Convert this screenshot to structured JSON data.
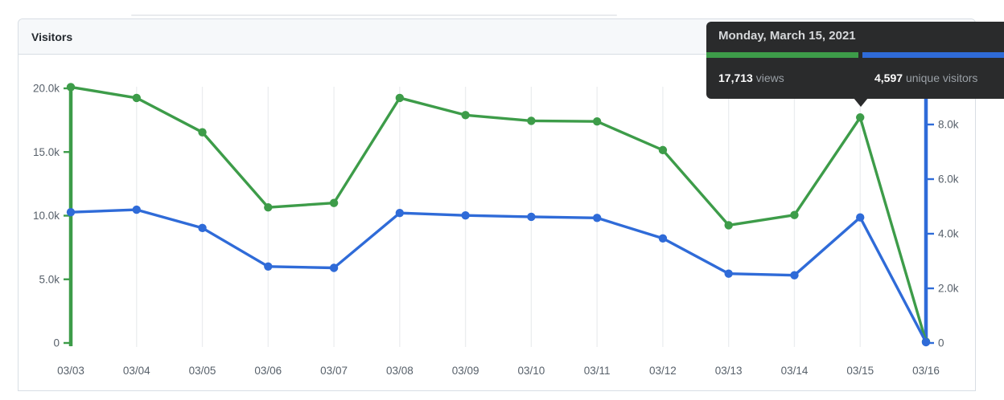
{
  "card": {
    "title": "Visitors"
  },
  "tooltip": {
    "date": "Monday, March 15, 2021",
    "views_value": "17,713",
    "views_label": "views",
    "unique_value": "4,597",
    "unique_label": "unique visitors",
    "bg": "#2a2b2c"
  },
  "colors": {
    "views_green": "#3d9c49",
    "unique_blue": "#2f6bd8",
    "grid": "#ebedef",
    "axis_label": "#57606a",
    "card_border": "#d8dee4",
    "header_bg": "#f6f8fa"
  },
  "chart_data": {
    "type": "line",
    "title": "Visitors",
    "grid": "vertical-only",
    "categories": [
      "03/03",
      "03/04",
      "03/05",
      "03/06",
      "03/07",
      "03/08",
      "03/09",
      "03/10",
      "03/11",
      "03/12",
      "03/13",
      "03/14",
      "03/15",
      "03/16"
    ],
    "series": [
      {
        "name": "views",
        "axis": "left",
        "color": "#3d9c49",
        "values": [
          20100,
          19250,
          16550,
          10650,
          11000,
          19250,
          17900,
          17450,
          17400,
          15150,
          9250,
          10050,
          17713,
          100
        ]
      },
      {
        "name": "unique visitors",
        "axis": "right",
        "color": "#2f6bd8",
        "values": [
          4790,
          4880,
          4210,
          2800,
          2750,
          4760,
          4670,
          4620,
          4580,
          3830,
          2540,
          2480,
          4597,
          30
        ]
      }
    ],
    "left_axis": {
      "max": 20000,
      "tick_values": [
        0,
        5000,
        10000,
        15000,
        20000
      ],
      "ticks": [
        "0",
        "5.0k",
        "10.0k",
        "15.0k",
        "20.0k"
      ]
    },
    "right_axis": {
      "max": 8000,
      "tick_values": [
        0,
        2000,
        4000,
        6000,
        8000
      ],
      "ticks": [
        "0",
        "2.0k",
        "4.0k",
        "6.0k",
        "8.0k"
      ]
    },
    "highlighted_point": {
      "category": "03/15",
      "category_index": 12,
      "views": 17713,
      "unique_visitors": 4597
    }
  }
}
